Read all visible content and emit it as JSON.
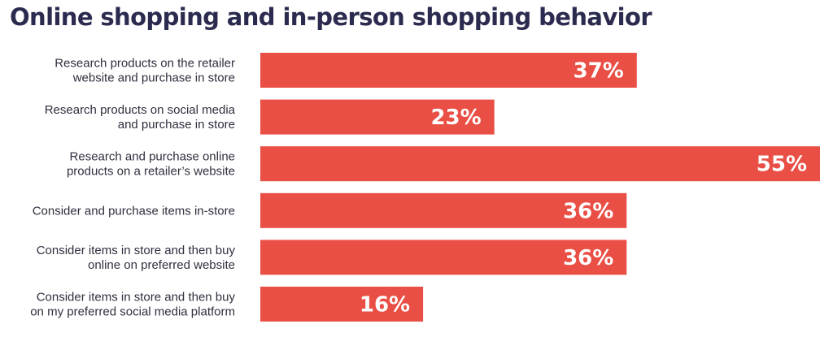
{
  "title": "Online shopping and in-person shopping behavior",
  "colors": {
    "bar": "#e94f45",
    "title": "#2b2b4f",
    "label": "#2f2f3f",
    "value_text": "#ffffff"
  },
  "chart_data": {
    "type": "bar",
    "orientation": "horizontal",
    "title": "Online shopping and in-person shopping behavior",
    "categories": [
      [
        "Research products on the retailer",
        "website and purchase in store"
      ],
      [
        "Research products on social media",
        "and purchase in store"
      ],
      [
        "Research and purchase online",
        "products on a retailer’s website"
      ],
      [
        "Consider and purchase items in-store"
      ],
      [
        "Consider items in store and then buy",
        "online on preferred website"
      ],
      [
        "Consider items in store and then buy",
        "on my preferred social media platform"
      ]
    ],
    "values": [
      37,
      23,
      55,
      36,
      36,
      16
    ],
    "value_labels": [
      "37%",
      "23%",
      "55%",
      "36%",
      "36%",
      "16%"
    ],
    "unit": "%",
    "xlim": [
      0,
      55
    ],
    "grid": false,
    "legend": "none"
  }
}
